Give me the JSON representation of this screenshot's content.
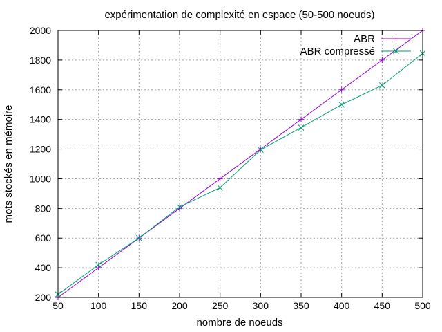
{
  "chart_data": {
    "type": "line",
    "title": "expérimentation de complexité en espace (50-500 noeuds)",
    "xlabel": "nombre de noeuds",
    "ylabel": "mots stockés en mémoire",
    "xlim": [
      50,
      500
    ],
    "ylim": [
      200,
      2000
    ],
    "xticks": [
      50,
      100,
      150,
      200,
      250,
      300,
      350,
      400,
      450,
      500
    ],
    "yticks": [
      200,
      400,
      600,
      800,
      1000,
      1200,
      1400,
      1600,
      1800,
      2000
    ],
    "grid": true,
    "legend_position": "top-right",
    "series": [
      {
        "name": "ABR",
        "color": "#9400d3",
        "marker": "plus",
        "x": [
          50,
          100,
          150,
          200,
          250,
          300,
          350,
          400,
          450,
          500
        ],
        "y": [
          200,
          400,
          600,
          800,
          1000,
          1200,
          1400,
          1600,
          1800,
          2000
        ]
      },
      {
        "name": "ABR compressé",
        "color": "#009e73",
        "marker": "cross",
        "x": [
          50,
          100,
          150,
          200,
          250,
          300,
          350,
          400,
          450,
          500
        ],
        "y": [
          220,
          420,
          600,
          810,
          940,
          1195,
          1345,
          1500,
          1630,
          1845
        ]
      }
    ]
  }
}
